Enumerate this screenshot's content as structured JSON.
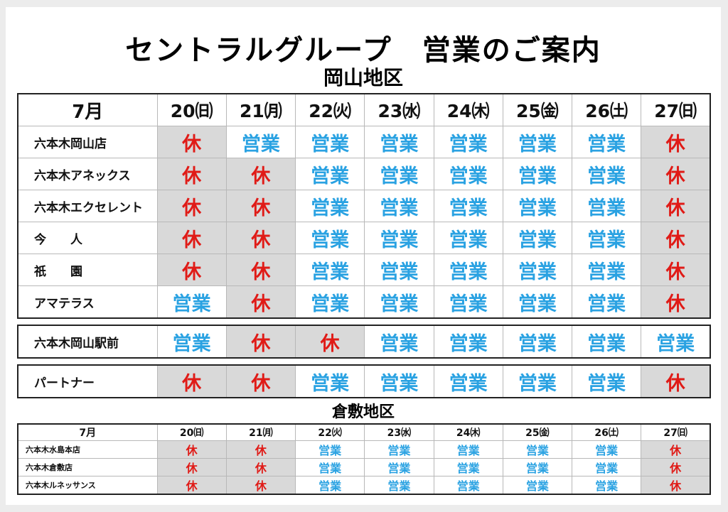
{
  "title": "セントラルグループ　営業のご案内",
  "okayama": {
    "region": "岡山地区",
    "month": "7月",
    "days": [
      {
        "label": "20㈰",
        "holiday": true
      },
      {
        "label": "21㈪",
        "holiday": true
      },
      {
        "label": "22㈫",
        "holiday": false
      },
      {
        "label": "23㈬",
        "holiday": false
      },
      {
        "label": "24㈭",
        "holiday": false
      },
      {
        "label": "25㈮",
        "holiday": false
      },
      {
        "label": "26㈯",
        "holiday": false
      },
      {
        "label": "27㈰",
        "holiday": true
      }
    ],
    "groups": [
      [
        {
          "name": "六本木岡山店",
          "status": [
            "休",
            "営業",
            "営業",
            "営業",
            "営業",
            "営業",
            "営業",
            "休"
          ]
        },
        {
          "name": "六本木アネックス",
          "status": [
            "休",
            "休",
            "営業",
            "営業",
            "営業",
            "営業",
            "営業",
            "休"
          ]
        },
        {
          "name": "六本木エクセレント",
          "status": [
            "休",
            "休",
            "営業",
            "営業",
            "営業",
            "営業",
            "営業",
            "休"
          ]
        },
        {
          "name": "今　　人",
          "status": [
            "休",
            "休",
            "営業",
            "営業",
            "営業",
            "営業",
            "営業",
            "休"
          ]
        },
        {
          "name": "祇　　園",
          "status": [
            "休",
            "休",
            "営業",
            "営業",
            "営業",
            "営業",
            "営業",
            "休"
          ]
        },
        {
          "name": "アマテラス",
          "status": [
            "営業",
            "休",
            "営業",
            "営業",
            "営業",
            "営業",
            "営業",
            "休"
          ]
        }
      ],
      [
        {
          "name": "六本木岡山駅前",
          "status": [
            "営業",
            "休",
            "休",
            "営業",
            "営業",
            "営業",
            "営業",
            "営業"
          ]
        }
      ],
      [
        {
          "name": "パートナー",
          "status": [
            "休",
            "休",
            "営業",
            "営業",
            "営業",
            "営業",
            "営業",
            "休"
          ]
        }
      ]
    ]
  },
  "kurashiki": {
    "region": "倉敷地区",
    "month": "7月",
    "days": [
      {
        "label": "20㈰",
        "holiday": true
      },
      {
        "label": "21㈪",
        "holiday": true
      },
      {
        "label": "22㈫",
        "holiday": false
      },
      {
        "label": "23㈬",
        "holiday": false
      },
      {
        "label": "24㈭",
        "holiday": false
      },
      {
        "label": "25㈮",
        "holiday": false
      },
      {
        "label": "26㈯",
        "holiday": false
      },
      {
        "label": "27㈰",
        "holiday": true
      }
    ],
    "rows": [
      {
        "name": "六本木水島本店",
        "status": [
          "休",
          "休",
          "営業",
          "営業",
          "営業",
          "営業",
          "営業",
          "休"
        ]
      },
      {
        "name": "六本木倉敷店",
        "status": [
          "休",
          "休",
          "営業",
          "営業",
          "営業",
          "営業",
          "営業",
          "休"
        ]
      },
      {
        "name": "六本木ルネッサンス",
        "status": [
          "休",
          "休",
          "営業",
          "営業",
          "営業",
          "営業",
          "営業",
          "休"
        ]
      }
    ]
  },
  "colors": {
    "holiday_text": "#e01b17",
    "open_text": "#2aa2e2",
    "holiday_bg": "#d9d9d9"
  }
}
